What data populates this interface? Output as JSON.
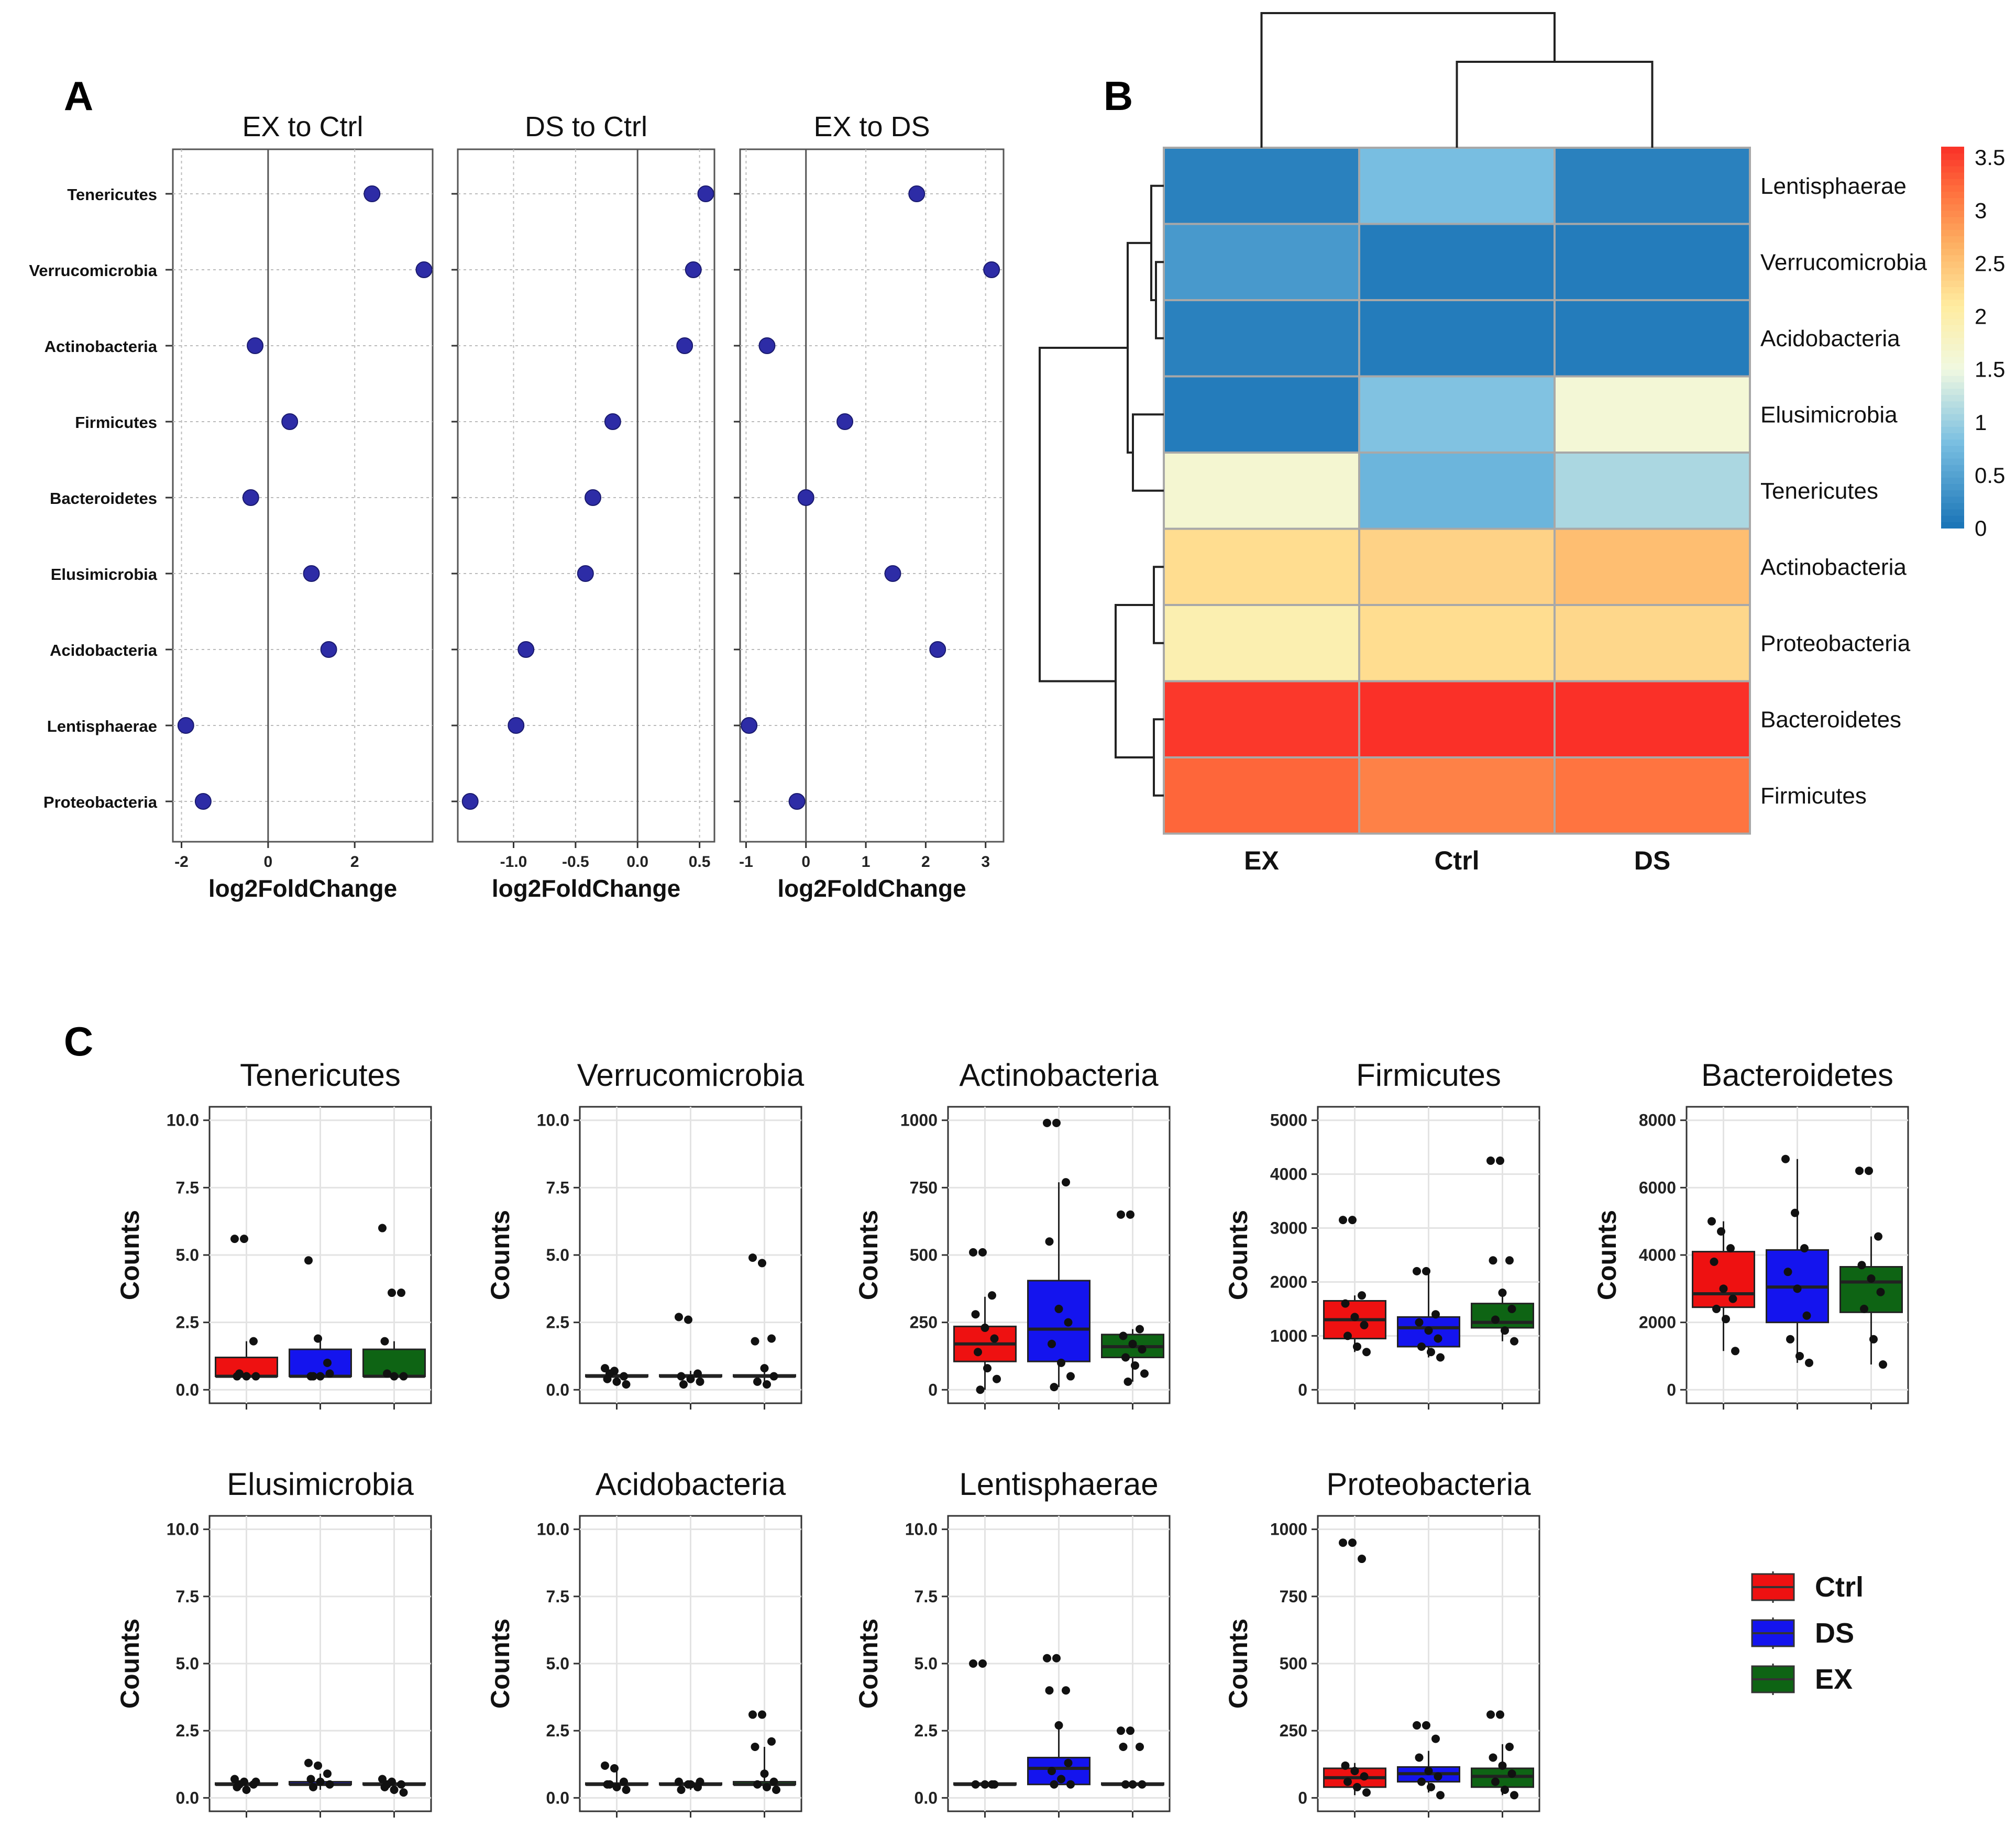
{
  "figure": {
    "panel_labels": {
      "a": "A",
      "b": "B",
      "c": "C"
    }
  },
  "chart_data": [
    {
      "type": "scatter",
      "panel": "A",
      "phyla": [
        "Tenericutes",
        "Verrucomicrobia",
        "Actinobacteria",
        "Firmicutes",
        "Bacteroidetes",
        "Elusimicrobia",
        "Acidobacteria",
        "Lentisphaerae",
        "Proteobacteria"
      ],
      "xlabel": "log2FoldChange",
      "point_color": "#2d2ca6",
      "subplots": [
        {
          "title": "EX to Ctrl",
          "xlim": [
            -2.2,
            3.8
          ],
          "xticks": [
            -2,
            0,
            2
          ],
          "xticklabels": [
            "-2",
            "0",
            "2"
          ],
          "values": [
            2.4,
            3.6,
            -0.3,
            0.5,
            -0.4,
            1.0,
            1.4,
            -1.9,
            -1.5
          ]
        },
        {
          "title": "DS to Ctrl",
          "xlim": [
            -1.45,
            0.62
          ],
          "xticks": [
            -1.0,
            -0.5,
            0.0,
            0.5
          ],
          "xticklabels": [
            "-1.0",
            "-0.5",
            "0.0",
            "0.5"
          ],
          "values": [
            0.55,
            0.45,
            0.38,
            -0.2,
            -0.36,
            -0.42,
            -0.9,
            -0.98,
            -1.35
          ]
        },
        {
          "title": "EX to DS",
          "xlim": [
            -1.1,
            3.3
          ],
          "xticks": [
            -1,
            0,
            1,
            2,
            3
          ],
          "xticklabels": [
            "-1",
            "0",
            "1",
            "2",
            "3"
          ],
          "values": [
            1.85,
            3.1,
            -0.65,
            0.65,
            0.0,
            1.45,
            2.2,
            -0.95,
            -0.15
          ]
        }
      ]
    },
    {
      "type": "heatmap",
      "panel": "B",
      "columns": [
        "EX",
        "Ctrl",
        "DS"
      ],
      "rows": [
        "Lentisphaerae",
        "Verrucomicrobia",
        "Acidobacteria",
        "Elusimicrobia",
        "Tenericutes",
        "Actinobacteria",
        "Proteobacteria",
        "Bacteroidetes",
        "Firmicutes"
      ],
      "values": [
        [
          0.15,
          0.8,
          0.15
        ],
        [
          0.4,
          0.1,
          0.1
        ],
        [
          0.15,
          0.1,
          0.1
        ],
        [
          0.1,
          0.85,
          1.6
        ],
        [
          1.65,
          0.7,
          1.1
        ],
        [
          2.25,
          2.35,
          2.55
        ],
        [
          1.95,
          2.25,
          2.3
        ],
        [
          3.55,
          3.7,
          3.6
        ],
        [
          3.25,
          3.05,
          3.15
        ]
      ],
      "colorbar": {
        "min": 0,
        "max": 3.6,
        "ticks": [
          0,
          0.5,
          1,
          1.5,
          2,
          2.5,
          3,
          3.5
        ],
        "ticklabels": [
          "0",
          "0.5",
          "1",
          "1.5",
          "2",
          "2.5",
          "3",
          "3.5"
        ]
      }
    },
    {
      "type": "box",
      "panel": "C",
      "ylabel": "Counts",
      "groups": [
        "Ctrl",
        "DS",
        "EX"
      ],
      "group_colors": [
        "#ee1111",
        "#1414ee",
        "#0e6414"
      ],
      "legend": [
        {
          "label": "Ctrl",
          "color": "#ee1111"
        },
        {
          "label": "DS",
          "color": "#1414ee"
        },
        {
          "label": "EX",
          "color": "#0e6414"
        }
      ],
      "panels": [
        {
          "title": "Tenericutes",
          "ylim": [
            -0.5,
            10.5
          ],
          "yticks": [
            0,
            2.5,
            5,
            7.5,
            10
          ],
          "yticklabels": [
            "0.0",
            "2.5",
            "5.0",
            "7.5",
            "10.0"
          ],
          "boxes": [
            {
              "q1": 0.5,
              "median": 0.5,
              "q3": 1.2,
              "lo": 0.5,
              "hi": 1.8
            },
            {
              "q1": 0.5,
              "median": 0.5,
              "q3": 1.5,
              "lo": 0.5,
              "hi": 1.9
            },
            {
              "q1": 0.5,
              "median": 0.5,
              "q3": 1.5,
              "lo": 0.5,
              "hi": 1.8
            }
          ],
          "points": [
            [
              5.6,
              5.6,
              1.8,
              0.5,
              0.5,
              0.5,
              0.6
            ],
            [
              4.8,
              1.9,
              1.0,
              0.5,
              0.5,
              0.6,
              0.5
            ],
            [
              6.0,
              3.6,
              3.6,
              1.8,
              0.5,
              0.5,
              0.6
            ]
          ]
        },
        {
          "title": "Verrucomicrobia",
          "ylim": [
            -0.5,
            10.5
          ],
          "yticks": [
            0,
            2.5,
            5,
            7.5,
            10
          ],
          "yticklabels": [
            "0.0",
            "2.5",
            "5.0",
            "7.5",
            "10.0"
          ],
          "boxes": [
            {
              "q1": 0.5,
              "median": 0.5,
              "q3": 0.55,
              "lo": 0.3,
              "hi": 0.75
            },
            {
              "q1": 0.5,
              "median": 0.5,
              "q3": 0.55,
              "lo": 0.3,
              "hi": 0.7
            },
            {
              "q1": 0.5,
              "median": 0.5,
              "q3": 0.55,
              "lo": 0.2,
              "hi": 0.8
            }
          ],
          "points": [
            [
              0.8,
              0.7,
              0.5,
              0.4,
              0.3,
              0.2,
              0.6
            ],
            [
              2.7,
              2.6,
              0.6,
              0.5,
              0.4,
              0.3,
              0.2
            ],
            [
              4.9,
              4.7,
              1.9,
              1.8,
              0.8,
              0.5,
              0.3,
              0.2
            ]
          ]
        },
        {
          "title": "Actinobacteria",
          "ylim": [
            -50,
            1050
          ],
          "yticks": [
            0,
            250,
            500,
            750,
            1000
          ],
          "yticklabels": [
            "0",
            "250",
            "500",
            "750",
            "1000"
          ],
          "boxes": [
            {
              "q1": 105,
              "median": 170,
              "q3": 235,
              "lo": 0,
              "hi": 345
            },
            {
              "q1": 105,
              "median": 225,
              "q3": 405,
              "lo": 10,
              "hi": 770
            },
            {
              "q1": 120,
              "median": 160,
              "q3": 205,
              "lo": 30,
              "hi": 225
            }
          ],
          "points": [
            [
              510,
              510,
              350,
              280,
              230,
              190,
              140,
              80,
              40,
              0
            ],
            [
              990,
              990,
              770,
              550,
              300,
              250,
              170,
              100,
              50,
              10
            ],
            [
              650,
              650,
              225,
              200,
              170,
              150,
              120,
              90,
              60,
              30
            ]
          ]
        },
        {
          "title": "Firmicutes",
          "ylim": [
            -250,
            5250
          ],
          "yticks": [
            0,
            1000,
            2000,
            3000,
            4000,
            5000
          ],
          "yticklabels": [
            "0",
            "1000",
            "2000",
            "3000",
            "4000",
            "5000"
          ],
          "boxes": [
            {
              "q1": 950,
              "median": 1300,
              "q3": 1650,
              "lo": 700,
              "hi": 1750
            },
            {
              "q1": 800,
              "median": 1150,
              "q3": 1350,
              "lo": 600,
              "hi": 2200
            },
            {
              "q1": 1150,
              "median": 1250,
              "q3": 1600,
              "lo": 900,
              "hi": 1800
            }
          ],
          "points": [
            [
              3150,
              3150,
              1750,
              1600,
              1350,
              1200,
              1000,
              800,
              700
            ],
            [
              2200,
              2200,
              1400,
              1250,
              1100,
              950,
              800,
              700,
              600
            ],
            [
              4250,
              4250,
              2400,
              2400,
              1800,
              1500,
              1300,
              1100,
              900
            ]
          ]
        },
        {
          "title": "Bacteroidetes",
          "ylim": [
            -400,
            8400
          ],
          "yticks": [
            0,
            2000,
            4000,
            6000,
            8000
          ],
          "yticklabels": [
            "0",
            "2000",
            "4000",
            "6000",
            "8000"
          ],
          "boxes": [
            {
              "q1": 2450,
              "median": 2850,
              "q3": 4100,
              "lo": 1150,
              "hi": 5000
            },
            {
              "q1": 2000,
              "median": 3050,
              "q3": 4150,
              "lo": 800,
              "hi": 6850
            },
            {
              "q1": 2300,
              "median": 3200,
              "q3": 3650,
              "lo": 750,
              "hi": 4550
            }
          ],
          "points": [
            [
              5000,
              4700,
              4200,
              3800,
              3000,
              2700,
              2400,
              2100,
              1150
            ],
            [
              6850,
              5250,
              4200,
              3500,
              3000,
              2200,
              1500,
              1000,
              800
            ],
            [
              6500,
              6500,
              4550,
              3700,
              3300,
              2900,
              2400,
              1500,
              750
            ]
          ]
        },
        {
          "title": "Elusimicrobia",
          "ylim": [
            -0.5,
            10.5
          ],
          "yticks": [
            0,
            2.5,
            5,
            7.5,
            10
          ],
          "yticklabels": [
            "0.0",
            "2.5",
            "5.0",
            "7.5",
            "10.0"
          ],
          "boxes": [
            {
              "q1": 0.5,
              "median": 0.5,
              "q3": 0.55,
              "lo": 0.3,
              "hi": 0.7
            },
            {
              "q1": 0.5,
              "median": 0.5,
              "q3": 0.6,
              "lo": 0.3,
              "hi": 0.9
            },
            {
              "q1": 0.5,
              "median": 0.5,
              "q3": 0.55,
              "lo": 0.2,
              "hi": 0.7
            }
          ],
          "points": [
            [
              0.7,
              0.6,
              0.5,
              0.4,
              0.3,
              0.6,
              0.5
            ],
            [
              1.3,
              1.2,
              0.9,
              0.7,
              0.6,
              0.5,
              0.4
            ],
            [
              0.7,
              0.6,
              0.5,
              0.4,
              0.3,
              0.2,
              0.5
            ]
          ]
        },
        {
          "title": "Acidobacteria",
          "ylim": [
            -0.5,
            10.5
          ],
          "yticks": [
            0,
            2.5,
            5,
            7.5,
            10
          ],
          "yticklabels": [
            "0.0",
            "2.5",
            "5.0",
            "7.5",
            "10.0"
          ],
          "boxes": [
            {
              "q1": 0.5,
              "median": 0.5,
              "q3": 0.55,
              "lo": 0.3,
              "hi": 1.2
            },
            {
              "q1": 0.5,
              "median": 0.5,
              "q3": 0.55,
              "lo": 0.3,
              "hi": 0.6
            },
            {
              "q1": 0.5,
              "median": 0.5,
              "q3": 0.6,
              "lo": 0.3,
              "hi": 1.9
            }
          ],
          "points": [
            [
              1.2,
              1.1,
              0.6,
              0.5,
              0.4,
              0.3,
              0.5
            ],
            [
              0.6,
              0.5,
              0.4,
              0.3,
              0.5,
              0.6
            ],
            [
              3.1,
              3.1,
              2.1,
              1.9,
              0.9,
              0.6,
              0.5,
              0.4,
              0.3
            ]
          ]
        },
        {
          "title": "Lentisphaerae",
          "ylim": [
            -0.5,
            10.5
          ],
          "yticks": [
            0,
            2.5,
            5,
            7.5,
            10
          ],
          "yticklabels": [
            "0.0",
            "2.5",
            "5.0",
            "7.5",
            "10.0"
          ],
          "boxes": [
            {
              "q1": 0.5,
              "median": 0.5,
              "q3": 0.55,
              "lo": 0.5,
              "hi": 0.55
            },
            {
              "q1": 0.5,
              "median": 1.1,
              "q3": 1.5,
              "lo": 0.5,
              "hi": 2.7
            },
            {
              "q1": 0.5,
              "median": 0.5,
              "q3": 0.55,
              "lo": 0.5,
              "hi": 0.55
            }
          ],
          "points": [
            [
              5.0,
              5.0,
              0.5,
              0.5,
              0.5,
              0.5
            ],
            [
              5.2,
              5.2,
              4.0,
              4.0,
              2.7,
              1.3,
              1.0,
              0.7,
              0.5,
              0.5
            ],
            [
              2.5,
              2.5,
              1.9,
              1.9,
              0.5,
              0.5,
              0.5
            ]
          ]
        },
        {
          "title": "Proteobacteria",
          "ylim": [
            -50,
            1050
          ],
          "yticks": [
            0,
            250,
            500,
            750,
            1000
          ],
          "yticklabels": [
            "0",
            "250",
            "500",
            "750",
            "1000"
          ],
          "boxes": [
            {
              "q1": 40,
              "median": 75,
              "q3": 110,
              "lo": 10,
              "hi": 130
            },
            {
              "q1": 60,
              "median": 90,
              "q3": 115,
              "lo": 20,
              "hi": 175
            },
            {
              "q1": 40,
              "median": 80,
              "q3": 110,
              "lo": 10,
              "hi": 200
            }
          ],
          "points": [
            [
              950,
              950,
              890,
              120,
              100,
              80,
              60,
              40,
              20
            ],
            [
              270,
              270,
              220,
              150,
              100,
              80,
              60,
              40,
              10
            ],
            [
              310,
              310,
              190,
              150,
              120,
              90,
              60,
              30,
              10
            ]
          ]
        }
      ]
    }
  ]
}
